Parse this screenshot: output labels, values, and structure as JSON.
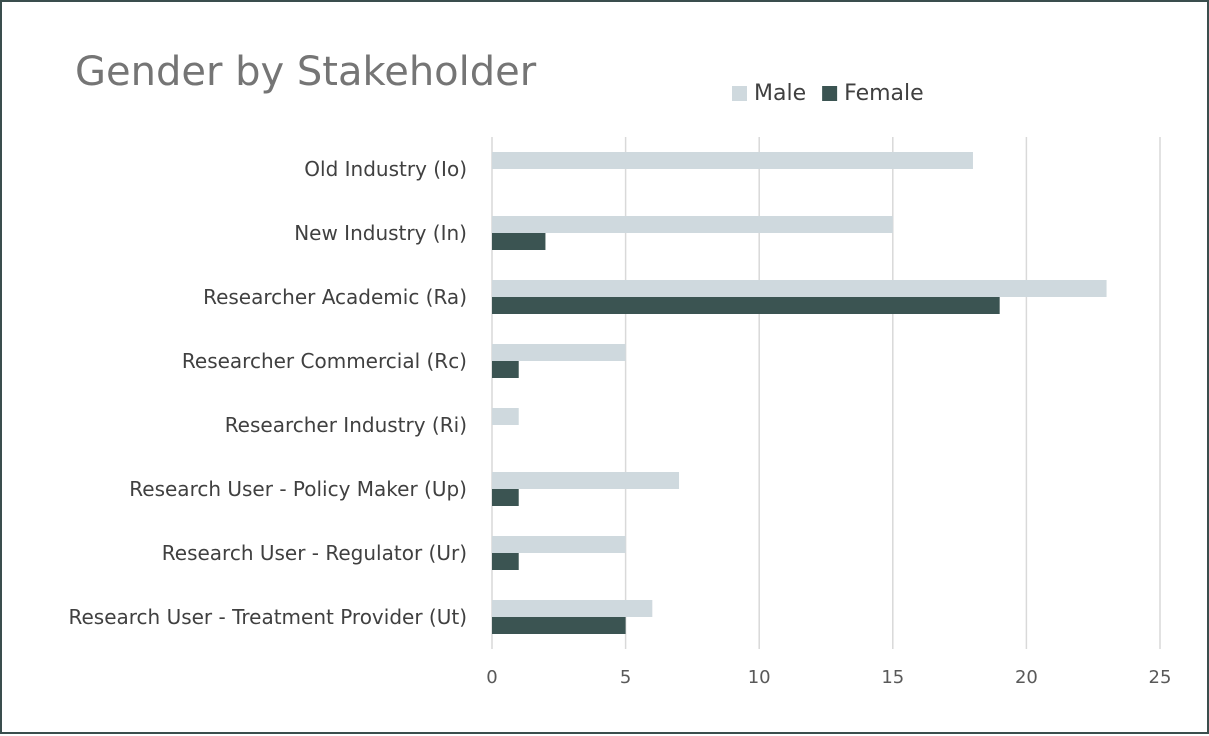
{
  "chart_data": {
    "type": "bar",
    "orientation": "horizontal",
    "title": "Gender by Stakeholder",
    "categories": [
      "Old Industry (Io)",
      "New Industry (In)",
      "Researcher Academic (Ra)",
      "Researcher Commercial (Rc)",
      "Researcher Industry (Ri)",
      "Research User - Policy Maker (Up)",
      "Research User - Regulator (Ur)",
      "Research User - Treatment Provider (Ut)"
    ],
    "series": [
      {
        "name": "Male",
        "color": "#cfd9de",
        "values": [
          18,
          15,
          23,
          5,
          1,
          7,
          5,
          6
        ]
      },
      {
        "name": "Female",
        "color": "#3b5452",
        "values": [
          0,
          2,
          19,
          1,
          0,
          1,
          1,
          5
        ]
      }
    ],
    "xlim": [
      0,
      25
    ],
    "xticks": [
      0,
      5,
      10,
      15,
      20,
      25
    ],
    "grid": true,
    "legend": "top"
  }
}
